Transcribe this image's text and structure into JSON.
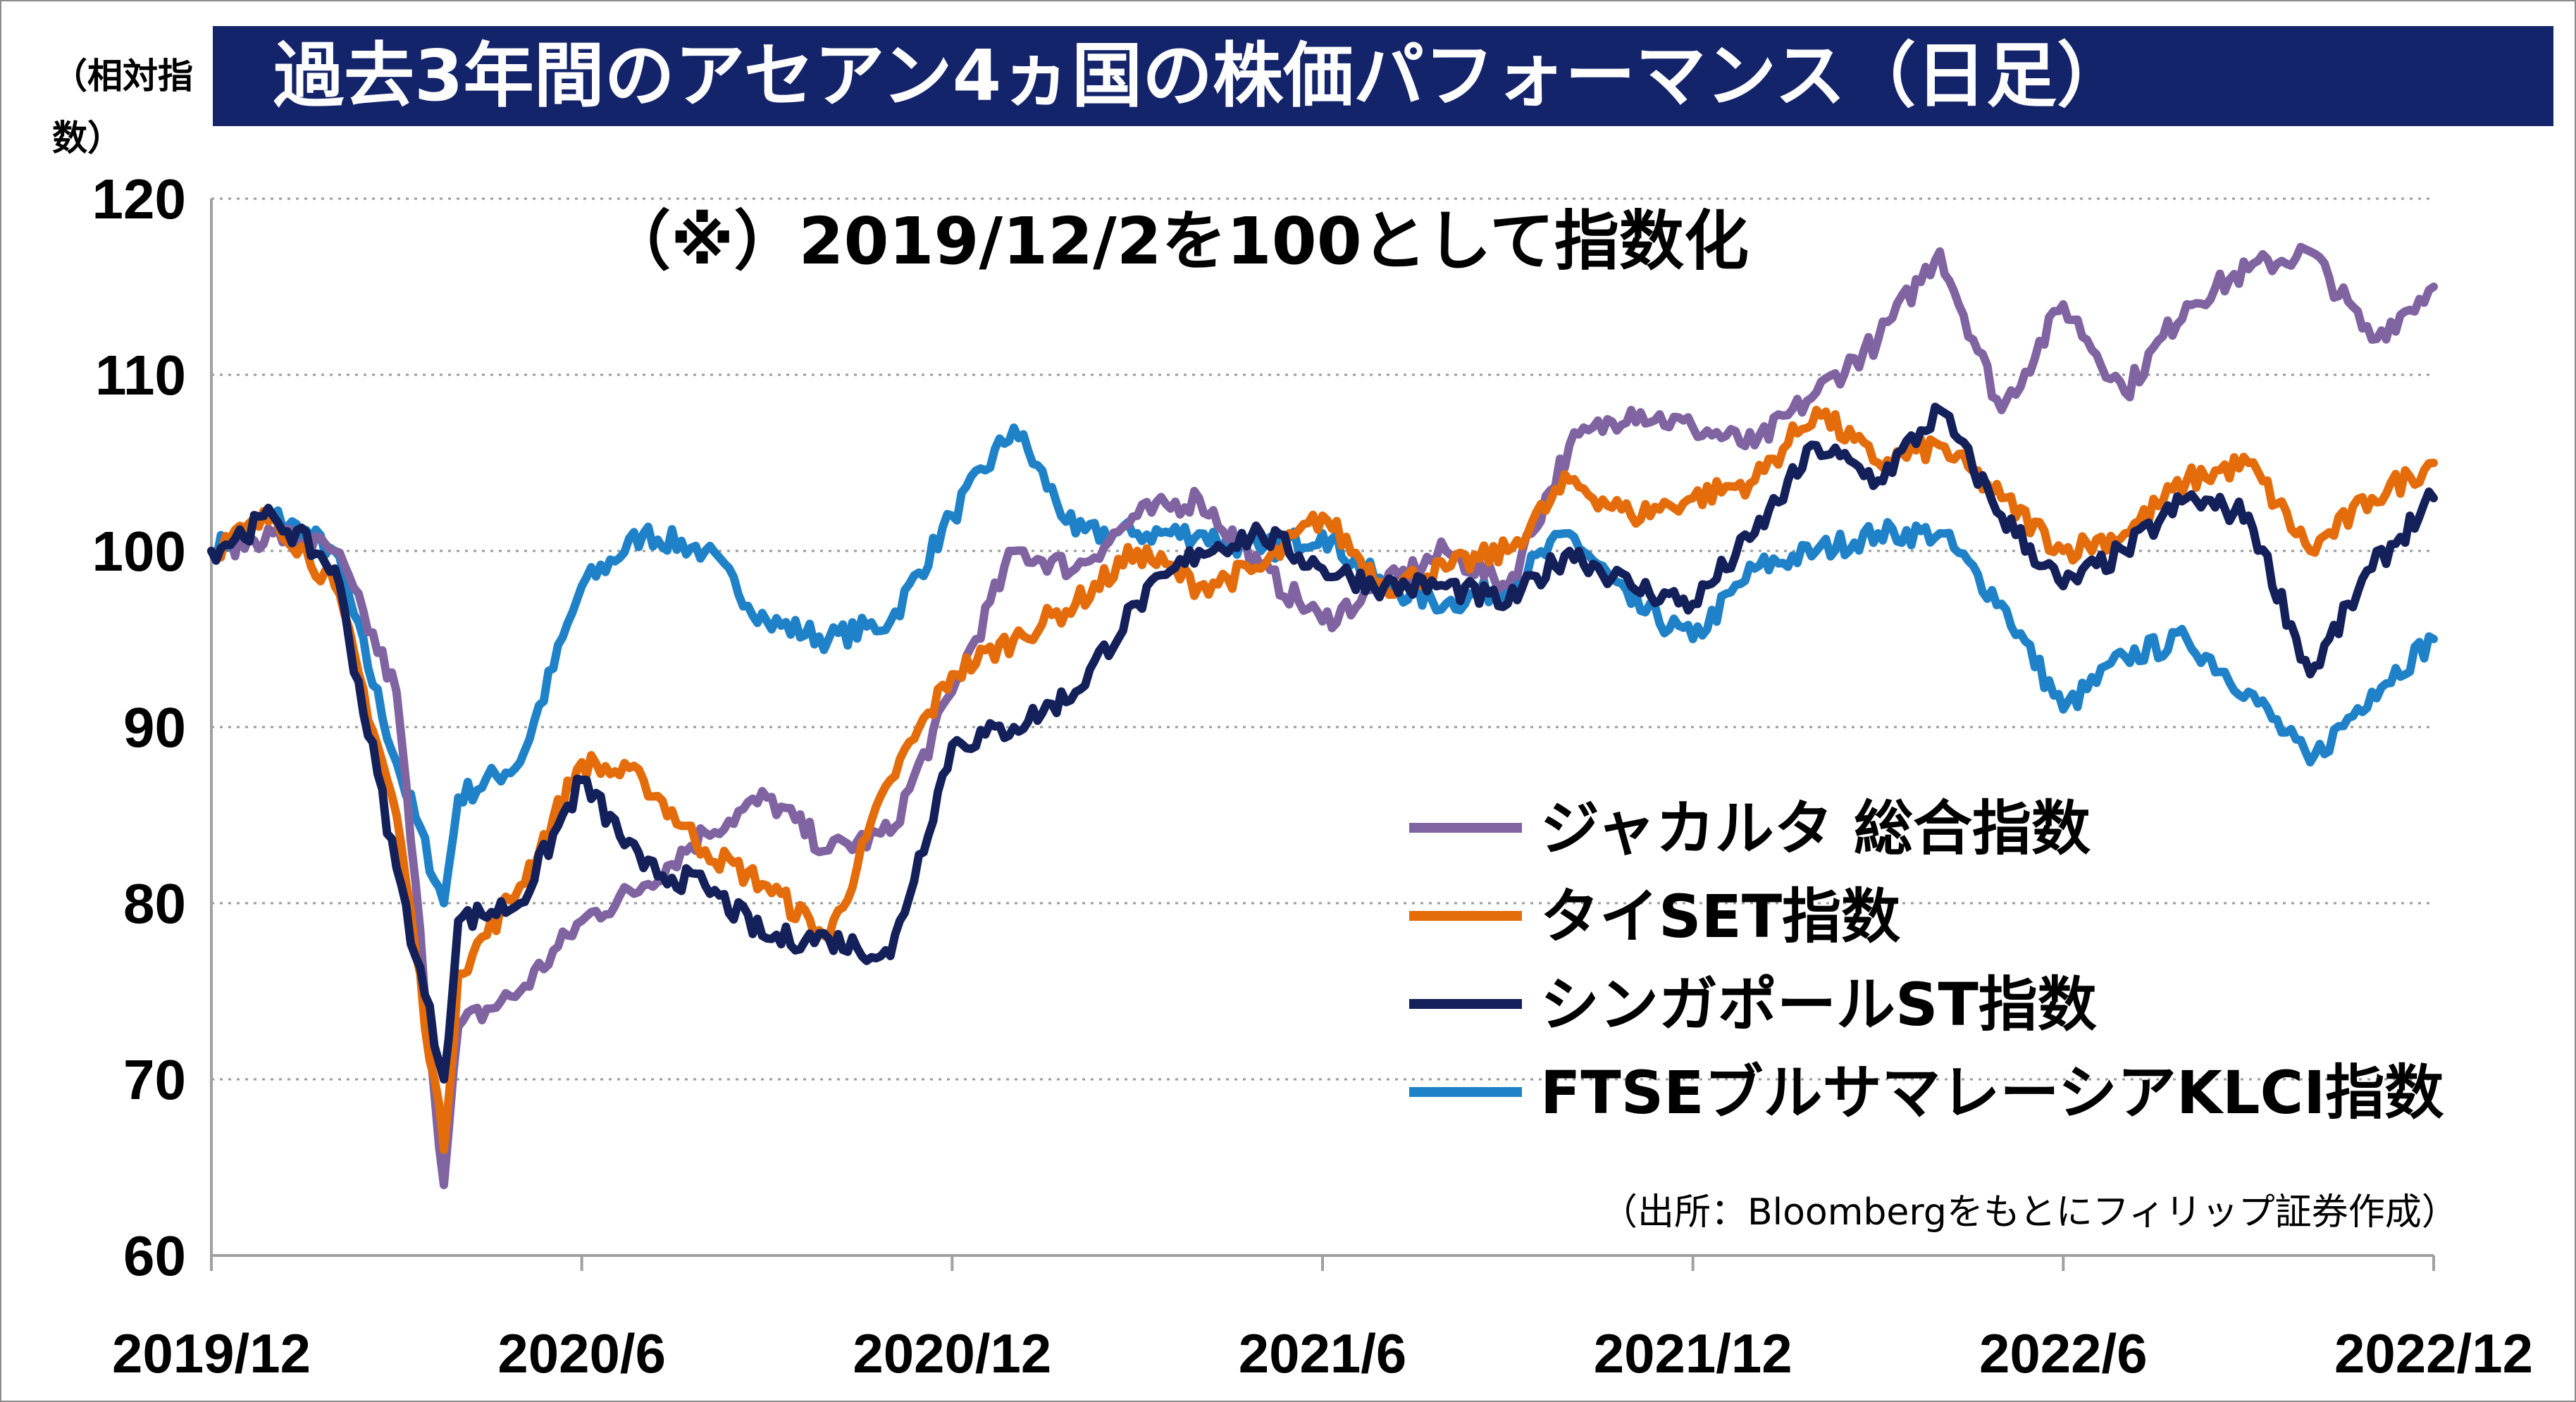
{
  "title": "過去3年間のアセアン4ヵ国の株価パフォーマンス（日足）",
  "unit_label": "（相対指数）",
  "note": "（※）2019/12/2を100として指数化",
  "source": "（出所：Bloombergをもとにフィリップ証券作成）",
  "colors": {
    "jakarta": "#8064a2",
    "thai": "#e46c0a",
    "singapore": "#14205a",
    "malaysia": "#1f82c8",
    "title_bg": "#14246b"
  },
  "chart_data": {
    "type": "line",
    "x_labels": [
      "2019/12",
      "2020/6",
      "2020/12",
      "2021/6",
      "2021/12",
      "2022/6",
      "2022/12"
    ],
    "y_ticks": [
      120,
      110,
      100,
      90,
      80,
      70,
      60
    ],
    "ylim": [
      60,
      120
    ],
    "xlim": [
      "2019-12",
      "2022-12"
    ],
    "grid": "horizontal dotted",
    "legend_position": "lower-right",
    "series": [
      {
        "name": "ジャカルタ 総合指数",
        "color": "#8064a2",
        "points": [
          [
            "2019-12",
            100
          ],
          [
            "2020-01",
            101
          ],
          [
            "2020-02",
            100
          ],
          [
            "2020-03",
            92
          ],
          [
            "2020-03-24",
            64
          ],
          [
            "2020-04",
            73
          ],
          [
            "2020-05",
            75
          ],
          [
            "2020-06",
            79
          ],
          [
            "2020-07",
            81
          ],
          [
            "2020-08",
            84
          ],
          [
            "2020-09",
            86
          ],
          [
            "2020-10",
            83
          ],
          [
            "2020-11",
            84
          ],
          [
            "2020-12",
            92
          ],
          [
            "2021-01",
            100
          ],
          [
            "2021-02",
            99
          ],
          [
            "2021-03",
            102
          ],
          [
            "2021-04",
            103
          ],
          [
            "2021-05",
            99
          ],
          [
            "2021-06",
            96
          ],
          [
            "2021-07",
            98
          ],
          [
            "2021-08",
            100
          ],
          [
            "2021-09",
            98
          ],
          [
            "2021-10",
            106
          ],
          [
            "2021-11",
            108
          ],
          [
            "2021-12",
            107
          ],
          [
            "2022-01",
            106
          ],
          [
            "2022-02",
            109
          ],
          [
            "2022-03",
            112
          ],
          [
            "2022-04",
            117
          ],
          [
            "2022-05",
            108
          ],
          [
            "2022-06",
            114
          ],
          [
            "2022-07",
            109
          ],
          [
            "2022-08",
            114
          ],
          [
            "2022-09",
            116
          ],
          [
            "2022-10",
            117
          ],
          [
            "2022-11",
            112
          ],
          [
            "2022-12",
            115
          ]
        ]
      },
      {
        "name": "タイSET指数",
        "color": "#e46c0a",
        "points": [
          [
            "2019-12",
            100
          ],
          [
            "2020-01",
            102
          ],
          [
            "2020-02",
            98
          ],
          [
            "2020-03",
            85
          ],
          [
            "2020-03-24",
            66
          ],
          [
            "2020-04",
            76
          ],
          [
            "2020-05",
            81
          ],
          [
            "2020-06",
            88
          ],
          [
            "2020-07",
            87
          ],
          [
            "2020-08",
            83
          ],
          [
            "2020-09",
            81
          ],
          [
            "2020-10",
            78
          ],
          [
            "2020-11",
            87
          ],
          [
            "2020-12",
            93
          ],
          [
            "2021-01",
            95
          ],
          [
            "2021-02",
            97
          ],
          [
            "2021-03",
            100
          ],
          [
            "2021-04",
            98
          ],
          [
            "2021-05",
            99
          ],
          [
            "2021-06",
            102
          ],
          [
            "2021-07",
            98
          ],
          [
            "2021-08",
            99
          ],
          [
            "2021-09",
            100
          ],
          [
            "2021-10",
            104
          ],
          [
            "2021-11",
            102
          ],
          [
            "2021-12",
            103
          ],
          [
            "2022-01",
            104
          ],
          [
            "2022-02",
            108
          ],
          [
            "2022-03",
            105
          ],
          [
            "2022-04",
            106
          ],
          [
            "2022-05",
            103
          ],
          [
            "2022-06",
            100
          ],
          [
            "2022-07",
            101
          ],
          [
            "2022-08",
            104
          ],
          [
            "2022-09",
            105
          ],
          [
            "2022-10",
            100
          ],
          [
            "2022-11",
            103
          ],
          [
            "2022-12",
            105
          ]
        ]
      },
      {
        "name": "シンガポールST指数",
        "color": "#14205a",
        "points": [
          [
            "2019-12",
            100
          ],
          [
            "2020-01",
            102
          ],
          [
            "2020-02",
            99
          ],
          [
            "2020-03",
            82
          ],
          [
            "2020-03-24",
            70
          ],
          [
            "2020-04",
            79
          ],
          [
            "2020-05",
            80
          ],
          [
            "2020-06",
            87
          ],
          [
            "2020-07",
            82
          ],
          [
            "2020-08",
            81
          ],
          [
            "2020-09",
            78
          ],
          [
            "2020-10",
            78
          ],
          [
            "2020-11",
            77
          ],
          [
            "2020-12",
            89
          ],
          [
            "2021-01",
            90
          ],
          [
            "2021-02",
            92
          ],
          [
            "2021-03",
            97
          ],
          [
            "2021-04",
            100
          ],
          [
            "2021-05",
            101
          ],
          [
            "2021-06",
            99
          ],
          [
            "2021-07",
            98
          ],
          [
            "2021-08",
            98
          ],
          [
            "2021-09",
            97
          ],
          [
            "2021-10",
            100
          ],
          [
            "2021-11",
            98
          ],
          [
            "2021-12",
            97
          ],
          [
            "2022-01",
            101
          ],
          [
            "2022-02",
            106
          ],
          [
            "2022-03",
            104
          ],
          [
            "2022-04",
            108
          ],
          [
            "2022-05",
            102
          ],
          [
            "2022-06",
            98
          ],
          [
            "2022-07",
            100
          ],
          [
            "2022-08",
            103
          ],
          [
            "2022-09",
            102
          ],
          [
            "2022-10",
            93
          ],
          [
            "2022-11",
            99
          ],
          [
            "2022-12",
            103
          ]
        ]
      },
      {
        "name": "FTSEブルサマレーシアKLCI指数",
        "color": "#1f82c8",
        "points": [
          [
            "2019-12",
            100
          ],
          [
            "2020-01",
            102
          ],
          [
            "2020-02",
            100
          ],
          [
            "2020-03",
            88
          ],
          [
            "2020-03-24",
            80
          ],
          [
            "2020-04",
            86
          ],
          [
            "2020-05",
            88
          ],
          [
            "2020-06",
            98
          ],
          [
            "2020-07",
            101
          ],
          [
            "2020-08",
            100
          ],
          [
            "2020-09",
            96
          ],
          [
            "2020-10",
            95
          ],
          [
            "2020-11",
            96
          ],
          [
            "2020-12",
            102
          ],
          [
            "2021-01",
            107
          ],
          [
            "2021-02",
            101
          ],
          [
            "2021-03",
            101
          ],
          [
            "2021-04",
            101
          ],
          [
            "2021-05",
            100
          ],
          [
            "2021-06",
            101
          ],
          [
            "2021-07",
            98
          ],
          [
            "2021-08",
            97
          ],
          [
            "2021-09",
            98
          ],
          [
            "2021-10",
            101
          ],
          [
            "2021-11",
            97
          ],
          [
            "2021-12",
            95
          ],
          [
            "2022-01",
            99
          ],
          [
            "2022-02",
            100
          ],
          [
            "2022-03",
            101
          ],
          [
            "2022-04",
            101
          ],
          [
            "2022-05",
            97
          ],
          [
            "2022-06",
            91
          ],
          [
            "2022-07",
            94
          ],
          [
            "2022-08",
            95
          ],
          [
            "2022-09",
            92
          ],
          [
            "2022-10",
            88
          ],
          [
            "2022-11",
            92
          ],
          [
            "2022-12",
            95
          ]
        ]
      }
    ]
  }
}
